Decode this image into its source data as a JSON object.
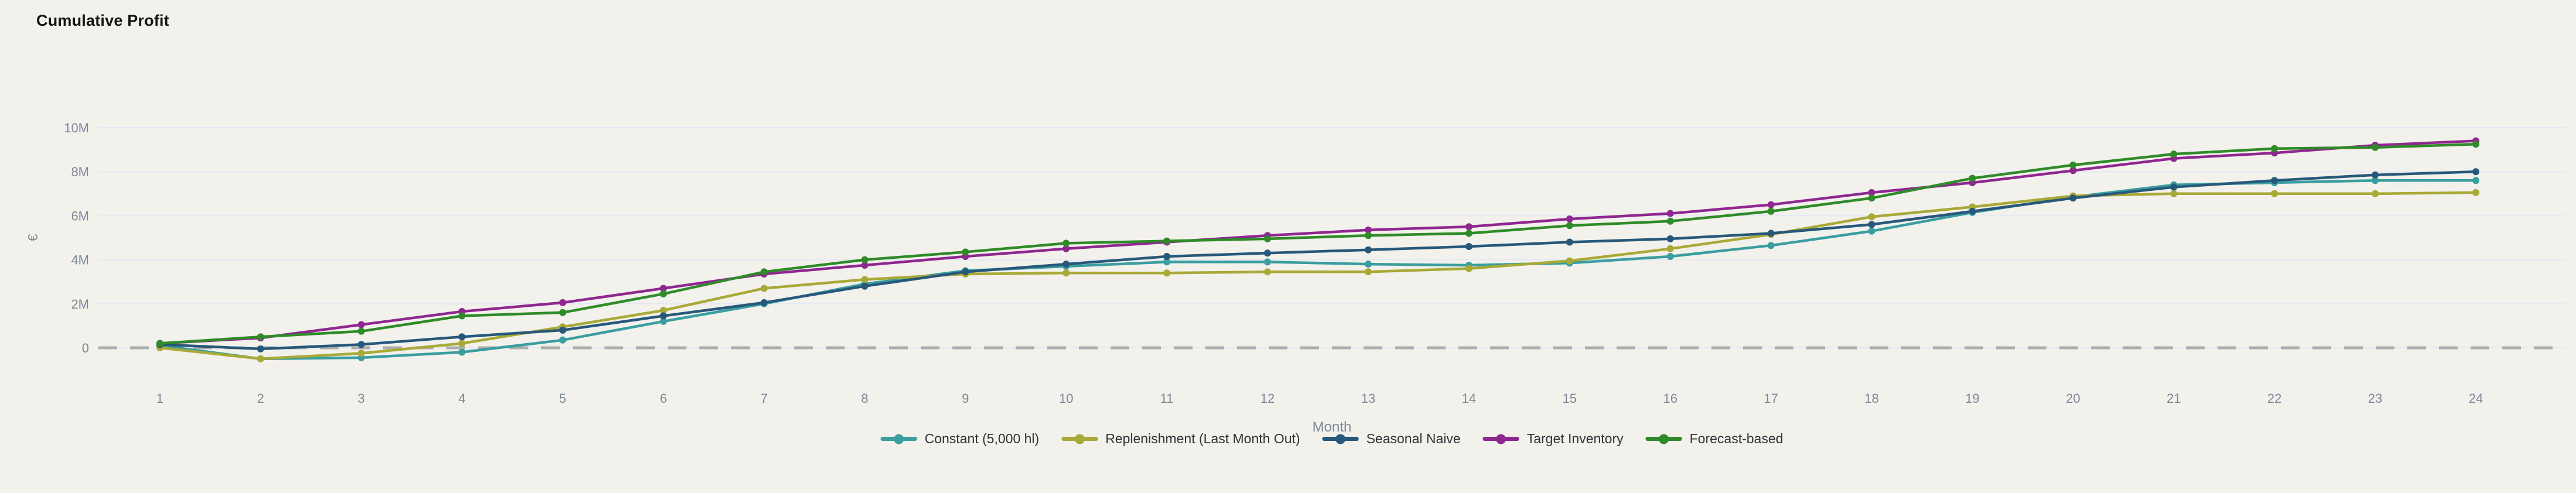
{
  "title": "Cumulative Profit",
  "colors": {
    "background": "#F2F1EC",
    "gridline": "#E3E8F2",
    "zero_line_dash": "#ADADAD",
    "tick_text": "#7E8799",
    "axis_title_text": "#7E8799",
    "legend_text": "#303338",
    "title_text": "#141414"
  },
  "chart_data": {
    "type": "line",
    "title": "Cumulative Profit",
    "xlabel": "Month",
    "ylabel": "€",
    "unit": "€ (values in millions, 'M')",
    "grid": true,
    "zero_line": "dashed",
    "legend_position": "bottom-center",
    "x": [
      1,
      2,
      3,
      4,
      5,
      6,
      7,
      8,
      9,
      10,
      11,
      12,
      13,
      14,
      15,
      16,
      17,
      18,
      19,
      20,
      21,
      22,
      23,
      24
    ],
    "x_tick_labels": [
      "1",
      "2",
      "3",
      "4",
      "5",
      "6",
      "7",
      "8",
      "9",
      "10",
      "11",
      "12",
      "13",
      "14",
      "15",
      "16",
      "17",
      "18",
      "19",
      "20",
      "21",
      "22",
      "23",
      "24"
    ],
    "y_tick_labels": [
      "0",
      "2M",
      "4M",
      "6M",
      "8M",
      "10M"
    ],
    "y_tick_values_millions": [
      0,
      2,
      4,
      6,
      8,
      10
    ],
    "ylim_millions": [
      -1.2,
      10.8
    ],
    "series": [
      {
        "name": "Constant (5,000 hl)",
        "color": "#3A9EA0",
        "values_millions": [
          0.1,
          -0.5,
          -0.45,
          -0.2,
          0.35,
          1.2,
          2.0,
          2.9,
          3.5,
          3.7,
          3.9,
          3.9,
          3.8,
          3.75,
          3.85,
          4.15,
          4.65,
          5.3,
          6.15,
          6.85,
          7.4,
          7.5,
          7.6,
          7.6
        ]
      },
      {
        "name": "Replenishment (Last Month Out)",
        "color": "#A9A937",
        "values_millions": [
          0.0,
          -0.5,
          -0.25,
          0.2,
          0.95,
          1.7,
          2.7,
          3.1,
          3.35,
          3.4,
          3.4,
          3.45,
          3.45,
          3.6,
          3.95,
          4.5,
          5.15,
          5.95,
          6.4,
          6.9,
          7.0,
          7.0,
          7.0,
          7.05
        ]
      },
      {
        "name": "Seasonal Naive",
        "color": "#27587A",
        "values_millions": [
          0.15,
          -0.05,
          0.15,
          0.5,
          0.8,
          1.45,
          2.05,
          2.8,
          3.45,
          3.8,
          4.15,
          4.3,
          4.45,
          4.6,
          4.8,
          4.95,
          5.2,
          5.6,
          6.2,
          6.8,
          7.3,
          7.6,
          7.85,
          8.0
        ]
      },
      {
        "name": "Target Inventory",
        "color": "#8F2790",
        "values_millions": [
          0.2,
          0.45,
          1.05,
          1.65,
          2.05,
          2.7,
          3.35,
          3.75,
          4.15,
          4.5,
          4.8,
          5.1,
          5.35,
          5.5,
          5.85,
          6.1,
          6.5,
          7.05,
          7.5,
          8.05,
          8.6,
          8.85,
          9.2,
          9.4
        ]
      },
      {
        "name": "Forecast-based",
        "color": "#2F8B28",
        "values_millions": [
          0.2,
          0.5,
          0.75,
          1.45,
          1.6,
          2.45,
          3.45,
          4.0,
          4.35,
          4.75,
          4.85,
          4.95,
          5.1,
          5.2,
          5.55,
          5.75,
          6.2,
          6.8,
          7.7,
          8.3,
          8.8,
          9.05,
          9.1,
          9.25
        ]
      }
    ]
  }
}
